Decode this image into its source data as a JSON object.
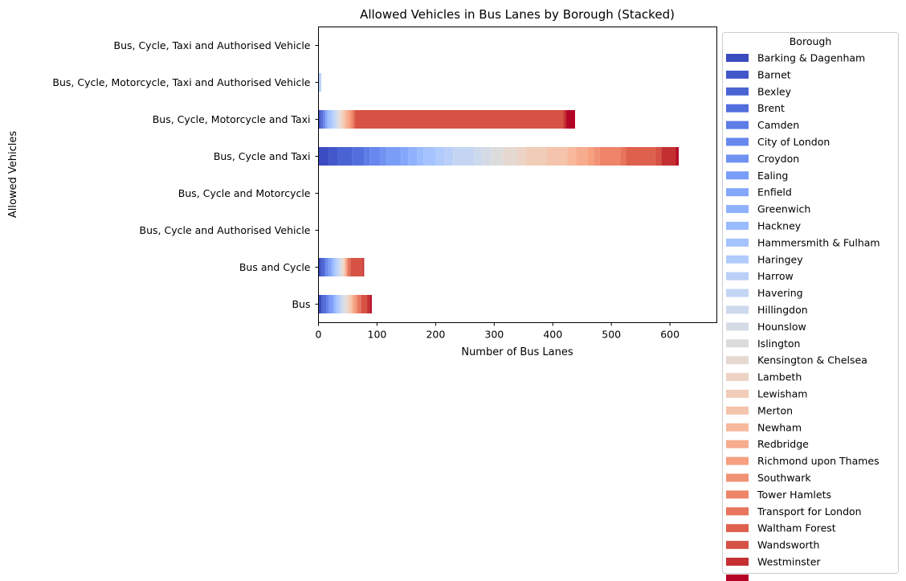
{
  "chart_data": {
    "type": "bar",
    "orientation": "horizontal",
    "stacked": true,
    "title": "Allowed Vehicles in Bus Lanes by Borough (Stacked)",
    "xlabel": "Number of Bus Lanes",
    "ylabel": "Allowed Vehicles",
    "xlim": [
      0,
      680
    ],
    "xticks": [
      0,
      100,
      200,
      300,
      400,
      500,
      600
    ],
    "grid": false,
    "legend": {
      "title": "Borough",
      "placement": "right"
    },
    "categories": [
      "Bus",
      "Bus and Cycle",
      "Bus, Cycle and Authorised Vehicle",
      "Bus, Cycle and Motorcycle",
      "Bus, Cycle and Taxi",
      "Bus, Cycle, Motorcycle and Taxi",
      "Bus, Cycle, Motorcycle, Taxi and Authorised Vehicle",
      "Bus, Cycle, Taxi and Authorised Vehicle"
    ],
    "series": [
      {
        "name": "Barking & Dagenham",
        "color": "#3b4cc0",
        "values": [
          5,
          4,
          0,
          0,
          18,
          3,
          0,
          0
        ]
      },
      {
        "name": "Barnet",
        "color": "#4257c9",
        "values": [
          2,
          2,
          0,
          0,
          15,
          1,
          0,
          0
        ]
      },
      {
        "name": "Bexley",
        "color": "#4a63d3",
        "values": [
          3,
          3,
          0,
          0,
          25,
          2,
          0,
          0
        ]
      },
      {
        "name": "Brent",
        "color": "#536edd",
        "values": [
          4,
          3,
          0,
          0,
          20,
          2,
          0,
          0
        ]
      },
      {
        "name": "Camden",
        "color": "#5d7ce6",
        "values": [
          2,
          2,
          0,
          0,
          10,
          1,
          0,
          0
        ]
      },
      {
        "name": "City of London",
        "color": "#6788ee",
        "values": [
          3,
          2,
          0,
          0,
          18,
          2,
          0,
          0
        ]
      },
      {
        "name": "Croydon",
        "color": "#7093f3",
        "values": [
          2,
          2,
          0,
          0,
          10,
          1,
          0,
          0
        ]
      },
      {
        "name": "Ealing",
        "color": "#7a9df8",
        "values": [
          3,
          3,
          0,
          0,
          25,
          2,
          0,
          0
        ]
      },
      {
        "name": "Enfield",
        "color": "#84a7fc",
        "values": [
          2,
          2,
          0,
          0,
          12,
          1,
          0,
          0
        ]
      },
      {
        "name": "Greenwich",
        "color": "#8fb1fe",
        "values": [
          2,
          2,
          0,
          0,
          15,
          1,
          0,
          0
        ]
      },
      {
        "name": "Hackney",
        "color": "#9abbff",
        "values": [
          2,
          2,
          0,
          0,
          12,
          3,
          1,
          0
        ]
      },
      {
        "name": "Hammersmith & Fulham",
        "color": "#a5c3fe",
        "values": [
          3,
          2,
          0,
          0,
          20,
          3,
          1,
          0
        ]
      },
      {
        "name": "Haringey",
        "color": "#b0cbfc",
        "values": [
          2,
          2,
          0,
          0,
          15,
          3,
          1,
          0
        ]
      },
      {
        "name": "Harrow",
        "color": "#bad0f8",
        "values": [
          2,
          2,
          0,
          0,
          15,
          2,
          1,
          0
        ]
      },
      {
        "name": "Havering",
        "color": "#c4d5f3",
        "values": [
          3,
          2,
          0,
          0,
          35,
          3,
          1,
          0
        ]
      },
      {
        "name": "Hillingdon",
        "color": "#cdd9ec",
        "values": [
          2,
          2,
          0,
          0,
          15,
          2,
          0,
          0
        ]
      },
      {
        "name": "Hounslow",
        "color": "#d5dbe5",
        "values": [
          3,
          2,
          0,
          0,
          15,
          2,
          0,
          0
        ]
      },
      {
        "name": "Islington",
        "color": "#dddcdc",
        "values": [
          2,
          1,
          0,
          0,
          20,
          2,
          0,
          0
        ]
      },
      {
        "name": "Kensington & Chelsea",
        "color": "#e5d8d1",
        "values": [
          2,
          1,
          0,
          0,
          25,
          2,
          0,
          0
        ]
      },
      {
        "name": "Lambeth",
        "color": "#ecd3c5",
        "values": [
          3,
          2,
          0,
          0,
          15,
          2,
          0,
          0
        ]
      },
      {
        "name": "Lewisham",
        "color": "#f1ccb8",
        "values": [
          2,
          1,
          0,
          0,
          35,
          3,
          0,
          0
        ]
      },
      {
        "name": "Merton",
        "color": "#f5c4ac",
        "values": [
          2,
          1,
          0,
          0,
          35,
          2,
          0,
          0
        ]
      },
      {
        "name": "Newham",
        "color": "#f7b89c",
        "values": [
          2,
          1,
          0,
          0,
          15,
          3,
          0,
          0
        ]
      },
      {
        "name": "Redbridge",
        "color": "#f7ac8e",
        "values": [
          3,
          1,
          0,
          0,
          20,
          3,
          0,
          0
        ]
      },
      {
        "name": "Richmond upon Thames",
        "color": "#f6a07f",
        "values": [
          2,
          1,
          0,
          0,
          10,
          3,
          0,
          0
        ]
      },
      {
        "name": "Southwark",
        "color": "#f29274",
        "values": [
          2,
          1,
          0,
          0,
          10,
          3,
          0,
          0
        ]
      },
      {
        "name": "Tower Hamlets",
        "color": "#ee8468",
        "values": [
          2,
          1,
          0,
          0,
          35,
          2,
          0,
          0
        ]
      },
      {
        "name": "Transport for London",
        "color": "#e7745b",
        "values": [
          4,
          3,
          0,
          0,
          10,
          2,
          0,
          0
        ]
      },
      {
        "name": "Waltham Forest",
        "color": "#de614d",
        "values": [
          2,
          2,
          0,
          0,
          50,
          2,
          0,
          0
        ]
      },
      {
        "name": "Wandsworth",
        "color": "#d65244",
        "values": [
          10,
          20,
          0,
          0,
          10,
          355,
          0,
          0
        ]
      },
      {
        "name": "Westminster",
        "color": "#c43032",
        "values": [
          5,
          3,
          0,
          0,
          25,
          5,
          0,
          0
        ]
      },
      {
        "name": "",
        "color": "#b40426",
        "values": [
          3,
          0,
          0,
          0,
          5,
          15,
          0,
          0
        ]
      }
    ]
  }
}
